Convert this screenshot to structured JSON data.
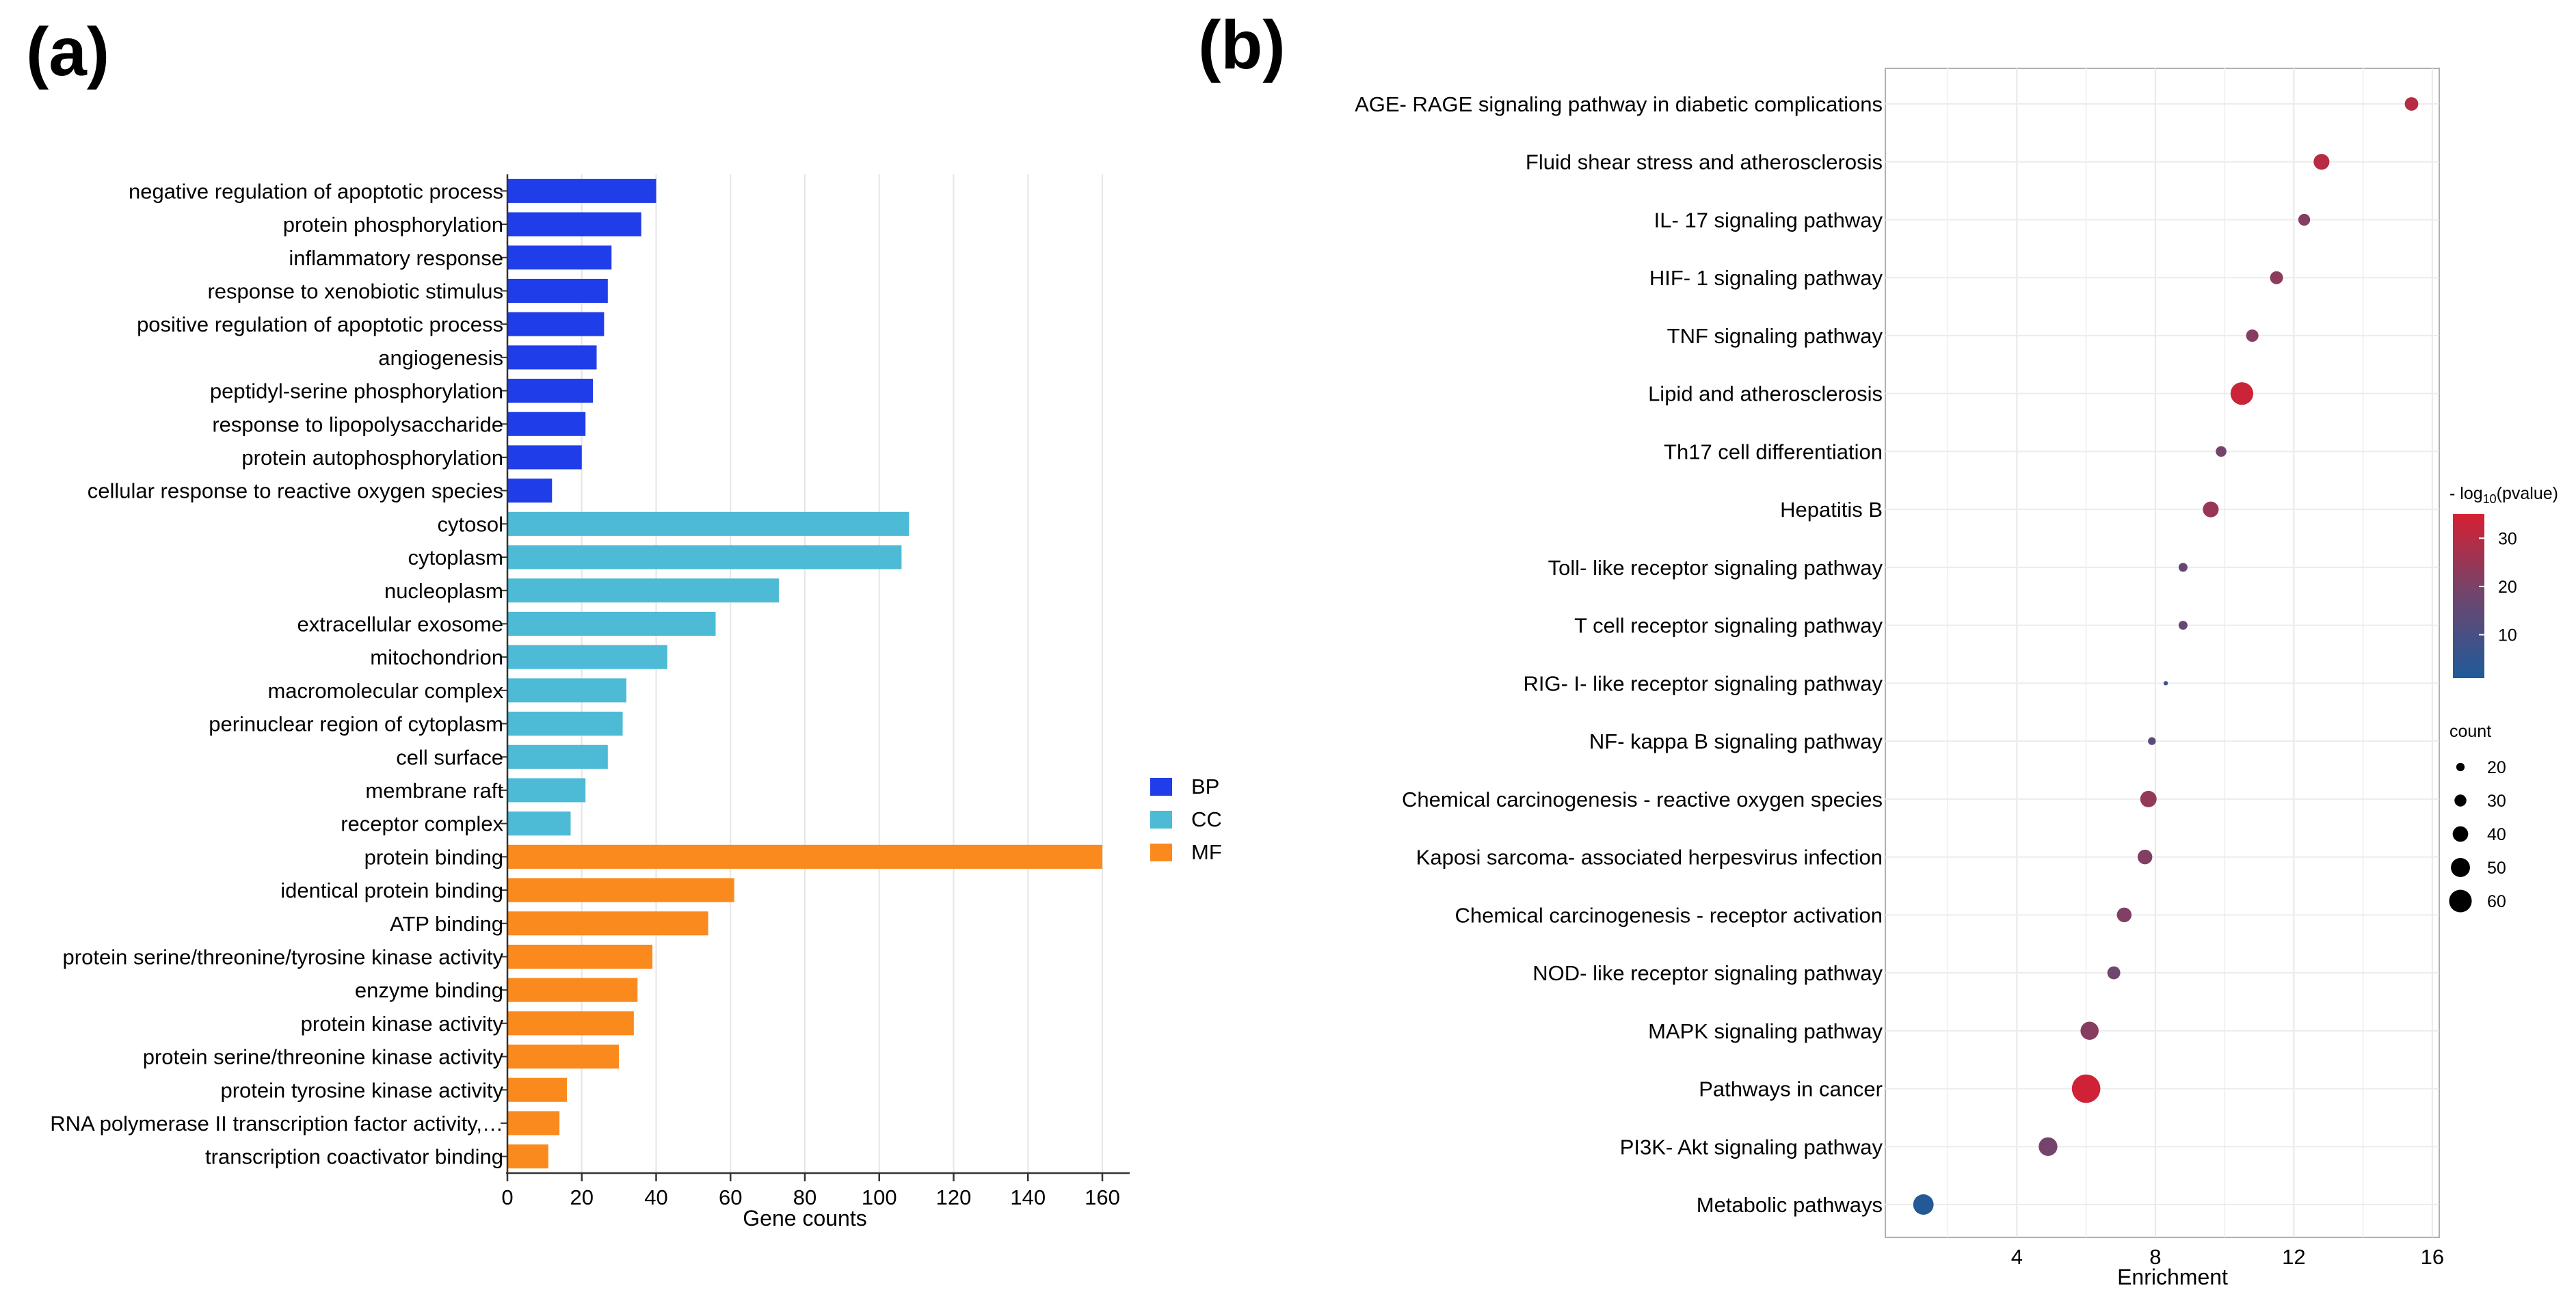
{
  "panels": {
    "a_label": "(a)",
    "b_label": "(b)"
  },
  "chart_data": [
    {
      "type": "bar",
      "orientation": "horizontal",
      "title": "",
      "xlabel": "Gene counts",
      "ylabel": "",
      "xlim": [
        0,
        160
      ],
      "xticks": [
        "0",
        "20",
        "40",
        "60",
        "80",
        "100",
        "120",
        "140",
        "160"
      ],
      "grid": "vertical",
      "legend": {
        "position": "right",
        "items": [
          {
            "name": "BP",
            "color": "#1f3de8"
          },
          {
            "name": "CC",
            "color": "#4dbad6"
          },
          {
            "name": "MF",
            "color": "#fa8a1e"
          }
        ]
      },
      "bars": [
        {
          "label": "negative regulation of apoptotic process",
          "value": 40,
          "group": "BP"
        },
        {
          "label": "protein phosphorylation",
          "value": 36,
          "group": "BP"
        },
        {
          "label": "inflammatory response",
          "value": 28,
          "group": "BP"
        },
        {
          "label": "response to xenobiotic stimulus",
          "value": 27,
          "group": "BP"
        },
        {
          "label": "positive regulation of apoptotic process",
          "value": 26,
          "group": "BP"
        },
        {
          "label": "angiogenesis",
          "value": 24,
          "group": "BP"
        },
        {
          "label": "peptidyl-serine phosphorylation",
          "value": 23,
          "group": "BP"
        },
        {
          "label": "response to lipopolysaccharide",
          "value": 21,
          "group": "BP"
        },
        {
          "label": "protein autophosphorylation",
          "value": 20,
          "group": "BP"
        },
        {
          "label": "cellular response to reactive oxygen species",
          "value": 12,
          "group": "BP"
        },
        {
          "label": "cytosol",
          "value": 108,
          "group": "CC"
        },
        {
          "label": "cytoplasm",
          "value": 106,
          "group": "CC"
        },
        {
          "label": "nucleoplasm",
          "value": 73,
          "group": "CC"
        },
        {
          "label": "extracellular exosome",
          "value": 56,
          "group": "CC"
        },
        {
          "label": "mitochondrion",
          "value": 43,
          "group": "CC"
        },
        {
          "label": "macromolecular complex",
          "value": 32,
          "group": "CC"
        },
        {
          "label": "perinuclear region of cytoplasm",
          "value": 31,
          "group": "CC"
        },
        {
          "label": "cell surface",
          "value": 27,
          "group": "CC"
        },
        {
          "label": "membrane raft",
          "value": 21,
          "group": "CC"
        },
        {
          "label": "receptor complex",
          "value": 17,
          "group": "CC"
        },
        {
          "label": "protein binding",
          "value": 160,
          "group": "MF"
        },
        {
          "label": "identical protein binding",
          "value": 61,
          "group": "MF"
        },
        {
          "label": "ATP binding",
          "value": 54,
          "group": "MF"
        },
        {
          "label": "protein serine/threonine/tyrosine kinase activity",
          "value": 39,
          "group": "MF"
        },
        {
          "label": "enzyme binding",
          "value": 35,
          "group": "MF"
        },
        {
          "label": "protein kinase activity",
          "value": 34,
          "group": "MF"
        },
        {
          "label": "protein serine/threonine kinase activity",
          "value": 30,
          "group": "MF"
        },
        {
          "label": "protein tyrosine kinase activity",
          "value": 16,
          "group": "MF"
        },
        {
          "label": "RNA polymerase II transcription factor activity,…",
          "value": 14,
          "group": "MF"
        },
        {
          "label": "transcription coactivator binding",
          "value": 11,
          "group": "MF"
        }
      ]
    },
    {
      "type": "scatter",
      "subtype": "bubble",
      "title": "",
      "xlabel": "Enrichment",
      "ylabel": "",
      "xlim": [
        0.2,
        16.2
      ],
      "xticks": [
        4,
        8,
        12,
        16
      ],
      "grid": "on",
      "color_legend": {
        "title": "- log",
        "title_subscript": "10",
        "title_suffix": "(pvalue)",
        "range": [
          1,
          35
        ],
        "ticks": [
          "10",
          "20",
          "30"
        ],
        "low_color": "#1f5a9a",
        "high_color": "#d62032"
      },
      "size_legend": {
        "title": "count",
        "values": [
          20,
          30,
          40,
          50,
          60
        ],
        "labels": [
          "20",
          "30",
          "40",
          "50",
          "60"
        ]
      },
      "points": [
        {
          "label": "AGE- RAGE signaling pathway in diabetic complications",
          "enrichment": 15.4,
          "count": 20,
          "neglog10p": 30
        },
        {
          "label": "Fluid shear stress and atherosclerosis",
          "enrichment": 12.8,
          "count": 24,
          "neglog10p": 30
        },
        {
          "label": "IL- 17 signaling pathway",
          "enrichment": 12.3,
          "count": 17,
          "neglog10p": 22
        },
        {
          "label": "HIF- 1 signaling pathway",
          "enrichment": 11.5,
          "count": 19,
          "neglog10p": 23
        },
        {
          "label": "TNF signaling pathway",
          "enrichment": 10.8,
          "count": 18,
          "neglog10p": 22
        },
        {
          "label": "Lipid and atherosclerosis",
          "enrichment": 10.5,
          "count": 36,
          "neglog10p": 33
        },
        {
          "label": "Th17 cell differentiation",
          "enrichment": 9.9,
          "count": 15,
          "neglog10p": 19
        },
        {
          "label": "Hepatitis B",
          "enrichment": 9.6,
          "count": 24,
          "neglog10p": 25
        },
        {
          "label": "Toll- like receptor signaling pathway",
          "enrichment": 8.8,
          "count": 12,
          "neglog10p": 16
        },
        {
          "label": "T cell receptor signaling pathway",
          "enrichment": 8.8,
          "count": 12,
          "neglog10p": 16
        },
        {
          "label": "RIG- I- like receptor signaling pathway",
          "enrichment": 8.3,
          "count": 4,
          "neglog10p": 8
        },
        {
          "label": "NF- kappa B signaling pathway",
          "enrichment": 7.9,
          "count": 10,
          "neglog10p": 14
        },
        {
          "label": "Chemical carcinogenesis -  reactive oxygen species",
          "enrichment": 7.8,
          "count": 25,
          "neglog10p": 24
        },
        {
          "label": "Kaposi sarcoma- associated herpesvirus infection",
          "enrichment": 7.7,
          "count": 22,
          "neglog10p": 21
        },
        {
          "label": "Chemical carcinogenesis -  receptor activation",
          "enrichment": 7.1,
          "count": 22,
          "neglog10p": 21
        },
        {
          "label": "NOD- like receptor signaling pathway",
          "enrichment": 6.8,
          "count": 19,
          "neglog10p": 18
        },
        {
          "label": "MAPK signaling pathway",
          "enrichment": 6.1,
          "count": 28,
          "neglog10p": 22
        },
        {
          "label": "Pathways in cancer",
          "enrichment": 6.0,
          "count": 46,
          "neglog10p": 34
        },
        {
          "label": "PI3K- Akt signaling pathway",
          "enrichment": 4.9,
          "count": 29,
          "neglog10p": 19
        },
        {
          "label": "Metabolic pathways",
          "enrichment": 1.3,
          "count": 32,
          "neglog10p": 2
        }
      ]
    }
  ]
}
